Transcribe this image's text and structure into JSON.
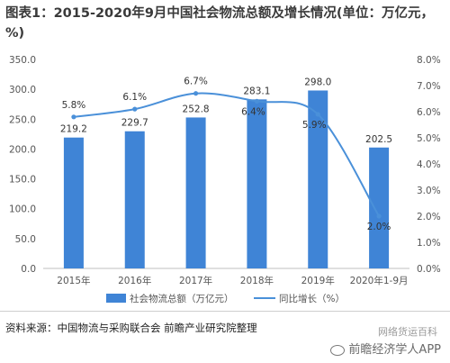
{
  "title": "图表1：2015-2020年9月中国社会物流总额及增长情况(单位：万亿元，%)",
  "source": "资料来源：中国物流与采购联合会 前瞻产业研究院整理",
  "watermark_small": "网络货运百科",
  "watermark_large": "前瞻经济学人APP",
  "chart_data": {
    "type": "bar",
    "categories": [
      "2015年",
      "2016年",
      "2017年",
      "2018年",
      "2019年",
      "2020年1-9月"
    ],
    "series": [
      {
        "name": "社会物流总额（万亿元）",
        "type": "bar",
        "axis": "left",
        "values": [
          219.2,
          229.7,
          252.8,
          283.1,
          298.0,
          202.5
        ],
        "labels": [
          "219.2",
          "229.7",
          "252.8",
          "283.1",
          "298.0",
          "202.5"
        ],
        "color": "#3f84d6"
      },
      {
        "name": "同比增长（%）",
        "type": "line",
        "axis": "right",
        "values": [
          5.8,
          6.1,
          6.7,
          6.4,
          5.9,
          2.0
        ],
        "labels": [
          "5.8%",
          "6.1%",
          "6.7%",
          "6.4%",
          "5.9%",
          "2.0%"
        ],
        "color": "#4a90d9"
      }
    ],
    "y_left": {
      "range": [
        0,
        350
      ],
      "ticks": [
        "0.0",
        "50.0",
        "100.0",
        "150.0",
        "200.0",
        "250.0",
        "300.0",
        "350.0"
      ]
    },
    "y_right": {
      "range": [
        0,
        8
      ],
      "ticks": [
        "0.0%",
        "1.0%",
        "2.0%",
        "3.0%",
        "4.0%",
        "5.0%",
        "6.0%",
        "7.0%",
        "8.0%"
      ]
    },
    "grid": false,
    "legend": "bottom"
  }
}
